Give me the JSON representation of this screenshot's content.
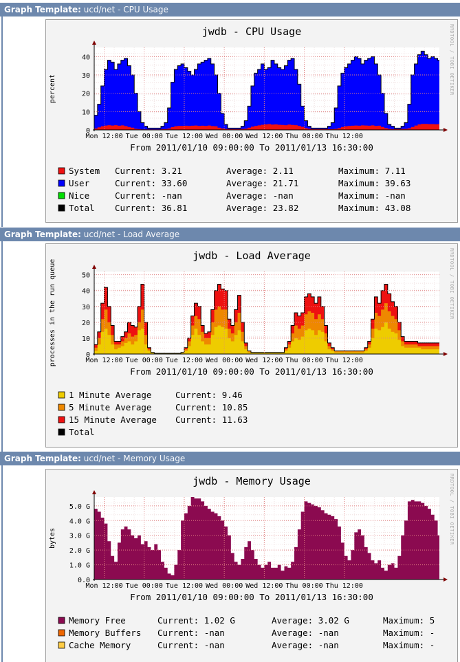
{
  "header_prefix": "Graph Template:",
  "rrd_watermark": "RRDTOOL / TOBI OETIKER",
  "date_range": "From 2011/01/10 09:00:00 To 2011/01/13 16:30:00",
  "x_ticks": [
    "Mon 12:00",
    "Tue 00:00",
    "Tue 12:00",
    "Wed 00:00",
    "Wed 12:00",
    "Thu 00:00",
    "Thu 12:00"
  ],
  "sections": [
    {
      "template": "ucd/net - CPU Usage"
    },
    {
      "template": "ucd/net - Load Average"
    },
    {
      "template": "ucd/net - Memory Usage"
    }
  ],
  "chart_data": [
    {
      "type": "area",
      "title": "jwdb - CPU Usage",
      "ylabel": "percent",
      "ylim": [
        0,
        45
      ],
      "yticks": [
        0,
        10,
        20,
        30,
        40
      ],
      "ytick_labels": [
        "0",
        "10",
        "20",
        "30",
        "40"
      ],
      "grid": true,
      "x_hours": [
        0,
        1,
        2,
        3,
        4,
        5,
        6,
        7,
        8,
        9,
        10,
        11,
        12,
        13,
        14,
        15,
        16,
        17,
        18,
        19,
        20,
        21,
        22,
        23,
        24,
        25,
        26,
        27,
        28,
        29,
        30,
        31,
        32,
        33,
        34,
        35,
        36,
        37,
        38,
        39,
        40,
        41,
        42,
        43,
        44,
        45,
        46,
        47,
        48,
        49,
        50,
        51,
        52,
        53,
        54,
        55,
        56,
        57,
        58,
        59,
        60,
        61,
        62,
        63,
        64,
        65,
        66,
        67,
        68,
        69,
        70,
        71,
        72,
        73,
        74,
        75,
        76,
        77,
        78,
        79,
        80,
        81,
        82,
        83,
        84,
        85,
        86,
        87,
        88,
        89,
        90,
        91,
        92,
        93,
        94,
        95,
        96,
        97,
        98,
        99,
        100,
        101,
        102,
        103
      ],
      "series": [
        {
          "name": "System",
          "color": "#ee1111",
          "values": [
            0.8,
            1.4,
            2.0,
            2.4,
            2.6,
            2.4,
            2.6,
            2.3,
            2.5,
            2.1,
            1.6,
            1.2,
            0.6,
            0.4,
            0.3,
            0.3,
            0.3,
            0.3,
            0.3,
            0.3,
            0.4,
            0.5,
            0.8,
            1.5,
            2.0,
            2.2,
            2.2,
            2.3,
            2.2,
            2.3,
            2.4,
            2.2,
            2.3,
            2.2,
            2.4,
            2.1,
            2.0,
            1.2,
            0.8,
            0.5,
            0.4,
            0.4,
            0.4,
            0.4,
            0.5,
            0.7,
            1.2,
            1.8,
            2.2,
            2.5,
            2.8,
            3.0,
            3.2,
            2.9,
            3.0,
            2.8,
            2.7,
            2.6,
            2.9,
            2.7,
            2.6,
            2.2,
            1.7,
            1.0,
            0.6,
            0.4,
            0.4,
            0.4,
            0.4,
            0.4,
            0.4,
            0.4,
            0.6,
            1.0,
            1.6,
            2.0,
            2.2,
            2.3,
            2.4,
            2.3,
            2.5,
            2.4,
            2.3,
            2.5,
            2.2,
            2.3,
            1.6,
            1.0,
            0.6,
            0.4,
            0.4,
            0.4,
            0.5,
            0.6,
            0.9,
            1.6,
            2.4,
            3.0,
            3.3,
            3.3,
            3.2,
            3.2,
            3.1,
            3.2
          ]
        },
        {
          "name": "User",
          "color": "#0000ff"
        },
        {
          "name": "Nice",
          "color": "#00dd00"
        },
        {
          "name": "Total",
          "color": "#000000",
          "values": [
            8,
            14,
            24,
            33,
            38,
            37,
            33,
            36,
            38,
            39,
            35,
            30,
            20,
            10,
            4,
            2,
            1,
            1,
            1,
            1,
            2,
            4,
            12,
            26,
            33,
            35,
            36,
            34,
            32,
            30,
            33,
            36,
            37,
            38,
            39,
            36,
            30,
            20,
            9,
            3,
            1,
            1,
            1,
            1,
            2,
            5,
            13,
            24,
            31,
            33,
            36,
            33,
            34,
            38,
            36,
            34,
            33,
            35,
            38,
            39,
            33,
            25,
            13,
            5,
            2,
            1,
            1,
            1,
            1,
            1,
            2,
            4,
            12,
            24,
            31,
            34,
            36,
            38,
            40,
            39,
            36,
            38,
            39,
            40,
            36,
            30,
            20,
            9,
            3,
            2,
            1,
            1,
            2,
            4,
            14,
            30,
            36,
            41,
            43,
            41,
            39,
            40,
            39,
            38
          ]
        }
      ],
      "legend": [
        {
          "name": "System",
          "color": "#ee1111",
          "current": "3.21",
          "average": "2.11",
          "maximum": "7.11"
        },
        {
          "name": "User",
          "color": "#0000ff",
          "current": "33.60",
          "average": "21.71",
          "maximum": "39.63"
        },
        {
          "name": "Nice",
          "color": "#00dd00",
          "current": "-nan",
          "average": "-nan",
          "maximum": "-nan"
        },
        {
          "name": "Total",
          "color": "#000000",
          "current": "36.81",
          "average": "23.82",
          "maximum": "43.08"
        }
      ]
    },
    {
      "type": "area",
      "title": "jwdb - Load Average",
      "ylabel": "processes in the run queue",
      "ylim": [
        0,
        52
      ],
      "yticks": [
        0,
        10,
        20,
        30,
        40,
        50
      ],
      "ytick_labels": [
        "0",
        "10",
        "20",
        "30",
        "40",
        "50"
      ],
      "grid": true,
      "x_hours": [
        0,
        1,
        2,
        3,
        4,
        5,
        6,
        7,
        8,
        9,
        10,
        11,
        12,
        13,
        14,
        15,
        16,
        17,
        18,
        19,
        20,
        21,
        22,
        23,
        24,
        25,
        26,
        27,
        28,
        29,
        30,
        31,
        32,
        33,
        34,
        35,
        36,
        37,
        38,
        39,
        40,
        41,
        42,
        43,
        44,
        45,
        46,
        47,
        48,
        49,
        50,
        51,
        52,
        53,
        54,
        55,
        56,
        57,
        58,
        59,
        60,
        61,
        62,
        63,
        64,
        65,
        66,
        67,
        68,
        69,
        70,
        71,
        72,
        73,
        74,
        75,
        76,
        77,
        78,
        79,
        80,
        81,
        82,
        83,
        84,
        85,
        86,
        87,
        88,
        89,
        90,
        91,
        92,
        93,
        94,
        95,
        96,
        97,
        98,
        99,
        100,
        101,
        102,
        103
      ],
      "series": [
        {
          "name": "1 Minute Average",
          "color": "#eecc00",
          "values": [
            2,
            6,
            14,
            16,
            12,
            6,
            3,
            4,
            5,
            7,
            8,
            6,
            8,
            15,
            16,
            6,
            2,
            1,
            0.5,
            0.5,
            0.5,
            0.5,
            0.5,
            0.5,
            0.5,
            0.5,
            1,
            2,
            5,
            12,
            16,
            12,
            8,
            6,
            6,
            12,
            17,
            18,
            17,
            16,
            10,
            8,
            12,
            15,
            8,
            3,
            1,
            1,
            1,
            1,
            1,
            1,
            1,
            1,
            1,
            1,
            1,
            2,
            4,
            8,
            10,
            9,
            11,
            15,
            16,
            15,
            12,
            15,
            14,
            8,
            3,
            2,
            1,
            1,
            1,
            1,
            1,
            1,
            1,
            1,
            1,
            2,
            4,
            10,
            16,
            15,
            17,
            20,
            16,
            14,
            13,
            9,
            5,
            4,
            4,
            4,
            4,
            4,
            3,
            3,
            3,
            3,
            3,
            3
          ]
        },
        {
          "name": "5 Minute Average",
          "color": "#ee8800",
          "values": [
            4,
            10,
            22,
            28,
            20,
            12,
            6,
            6,
            8,
            10,
            13,
            11,
            12,
            20,
            28,
            12,
            3,
            1,
            0.5,
            0.5,
            0.5,
            0.5,
            0.5,
            0.5,
            0.5,
            0.5,
            1,
            3,
            8,
            18,
            24,
            22,
            14,
            10,
            10,
            20,
            28,
            30,
            28,
            28,
            16,
            13,
            20,
            26,
            14,
            5,
            2,
            1,
            1,
            1,
            1,
            1,
            1,
            1,
            1,
            1,
            1,
            3,
            6,
            13,
            18,
            16,
            18,
            25,
            27,
            26,
            22,
            25,
            22,
            13,
            5,
            3,
            2,
            2,
            2,
            2,
            2,
            2,
            2,
            2,
            2,
            3,
            6,
            16,
            26,
            24,
            28,
            32,
            27,
            24,
            22,
            15,
            8,
            6,
            6,
            6,
            6,
            5,
            5,
            5,
            5,
            5,
            5,
            5
          ]
        },
        {
          "name": "15 Minute Average",
          "color": "#ee1111",
          "values": [
            6,
            14,
            32,
            42,
            30,
            18,
            8,
            8,
            11,
            14,
            20,
            18,
            17,
            30,
            44,
            20,
            4,
            1,
            0.5,
            0.5,
            0.5,
            0.5,
            0.5,
            0.5,
            0.5,
            0.5,
            1,
            4,
            10,
            24,
            32,
            30,
            18,
            13,
            14,
            28,
            40,
            44,
            41,
            40,
            22,
            18,
            28,
            37,
            20,
            7,
            2,
            1,
            1,
            1,
            1,
            1,
            1,
            1,
            1,
            1,
            1,
            4,
            8,
            18,
            26,
            24,
            26,
            36,
            38,
            36,
            32,
            36,
            30,
            18,
            7,
            4,
            2,
            2,
            2,
            2,
            2,
            2,
            2,
            2,
            2,
            4,
            8,
            22,
            36,
            32,
            40,
            44,
            38,
            33,
            30,
            20,
            11,
            8,
            8,
            8,
            8,
            7,
            7,
            7,
            7,
            7,
            7,
            7
          ]
        },
        {
          "name": "Total",
          "color": "#000000"
        }
      ],
      "legend": [
        {
          "name": "1 Minute Average",
          "color": "#eecc00",
          "current": "9.46"
        },
        {
          "name": "5 Minute Average",
          "color": "#ee8800",
          "current": "10.85"
        },
        {
          "name": "15 Minute Average",
          "color": "#ee1111",
          "current": "11.63"
        },
        {
          "name": "Total",
          "color": "#000000"
        }
      ]
    },
    {
      "type": "area",
      "title": "jwdb - Memory Usage",
      "ylabel": "bytes",
      "ylim": [
        0,
        5.6
      ],
      "yticks": [
        0,
        1,
        2,
        3,
        4,
        5
      ],
      "ytick_labels": [
        "0.0",
        "1.0 G",
        "2.0 G",
        "3.0 G",
        "4.0 G",
        "5.0 G"
      ],
      "grid": true,
      "x_hours": [
        0,
        1,
        2,
        3,
        4,
        5,
        6,
        7,
        8,
        9,
        10,
        11,
        12,
        13,
        14,
        15,
        16,
        17,
        18,
        19,
        20,
        21,
        22,
        23,
        24,
        25,
        26,
        27,
        28,
        29,
        30,
        31,
        32,
        33,
        34,
        35,
        36,
        37,
        38,
        39,
        40,
        41,
        42,
        43,
        44,
        45,
        46,
        47,
        48,
        49,
        50,
        51,
        52,
        53,
        54,
        55,
        56,
        57,
        58,
        59,
        60,
        61,
        62,
        63,
        64,
        65,
        66,
        67,
        68,
        69,
        70,
        71,
        72,
        73,
        74,
        75,
        76,
        77,
        78,
        79,
        80,
        81,
        82,
        83,
        84,
        85,
        86,
        87,
        88,
        89,
        90,
        91,
        92,
        93,
        94,
        95,
        96,
        97,
        98,
        99,
        100,
        101,
        102,
        103
      ],
      "series": [
        {
          "name": "Memory Free",
          "color": "#8b0a50",
          "values": [
            4.8,
            4.6,
            4.2,
            3.8,
            2.6,
            1.6,
            1.2,
            2.5,
            3.4,
            3.6,
            3.4,
            3.0,
            2.8,
            3.0,
            2.4,
            2.6,
            2.2,
            2.0,
            2.4,
            2.0,
            1.2,
            0.8,
            0.4,
            0.3,
            1.0,
            2.0,
            4.0,
            4.5,
            5.0,
            5.6,
            5.5,
            5.5,
            5.3,
            5.0,
            4.8,
            4.6,
            4.5,
            4.3,
            4.0,
            3.6,
            3.0,
            1.8,
            1.2,
            1.0,
            1.4,
            2.2,
            2.6,
            2.0,
            1.4,
            1.0,
            0.8,
            1.0,
            1.2,
            0.8,
            0.8,
            1.0,
            0.6,
            0.9,
            0.8,
            1.2,
            2.2,
            3.4,
            4.6,
            5.3,
            5.2,
            5.1,
            5.0,
            4.9,
            4.7,
            4.5,
            4.4,
            4.3,
            4.1,
            3.6,
            2.5,
            1.6,
            1.3,
            2.0,
            3.2,
            3.4,
            3.0,
            2.2,
            1.8,
            1.3,
            1.1,
            1.3,
            0.8,
            0.6,
            1.0,
            1.1,
            0.8,
            1.6,
            3.0,
            4.0,
            5.3,
            5.4,
            5.3,
            5.3,
            5.2,
            5.0,
            4.8,
            4.4,
            4.0,
            3.0
          ]
        },
        {
          "name": "Memory Buffers",
          "color": "#ee6600"
        },
        {
          "name": "Cache Memory",
          "color": "#ffcc44"
        }
      ],
      "legend": [
        {
          "name": "Memory Free",
          "color": "#8b0a50",
          "current": "1.02 G",
          "average": "3.02 G",
          "maximum": "5"
        },
        {
          "name": "Memory Buffers",
          "color": "#ee6600",
          "current": "-nan",
          "average": "-nan",
          "maximum": "-"
        },
        {
          "name": "Cache Memory",
          "color": "#ffcc44",
          "current": "-nan",
          "average": "-nan",
          "maximum": "-"
        }
      ]
    }
  ]
}
